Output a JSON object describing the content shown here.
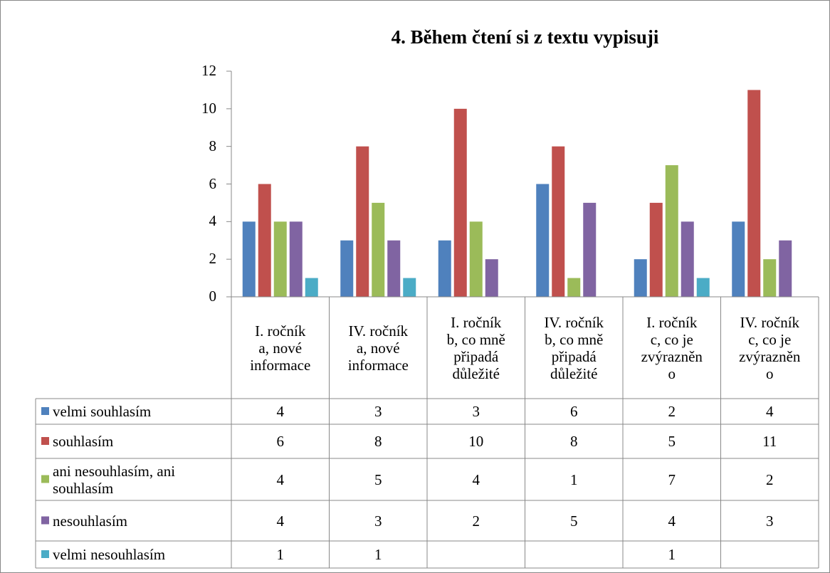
{
  "chart_data": {
    "type": "bar",
    "title": "4. Během čtení si z textu vypisuji",
    "categories": [
      "I. ročník\na, nové\ninformace",
      "IV. ročník\na, nové\ninformace",
      "I. ročník\nb, co mně\npřipadá\ndůležité",
      "IV. ročník\nb, co mně\npřipadá\ndůležité",
      "I. ročník\nc, co je\nzvýrazněn\no",
      "IV. ročník\nc, co je\nzvýrazněn\no"
    ],
    "series": [
      {
        "name": "velmi souhlasím",
        "color": "#4f81bd",
        "values": [
          4,
          3,
          3,
          6,
          2,
          4
        ]
      },
      {
        "name": "souhlasím",
        "color": "#c0504d",
        "values": [
          6,
          8,
          10,
          8,
          5,
          11
        ]
      },
      {
        "name": "ani nesouhlasím, ani souhlasím",
        "color": "#9bbb59",
        "values": [
          4,
          5,
          4,
          1,
          7,
          2
        ]
      },
      {
        "name": "nesouhlasím",
        "color": "#8064a2",
        "values": [
          4,
          3,
          2,
          5,
          4,
          3
        ]
      },
      {
        "name": "velmi nesouhlasím",
        "color": "#4bacc6",
        "values": [
          1,
          1,
          null,
          null,
          1,
          null
        ]
      }
    ],
    "ylim": [
      0,
      12
    ],
    "yticks": [
      0,
      2,
      4,
      6,
      8,
      10,
      12
    ],
    "data_table": true
  }
}
